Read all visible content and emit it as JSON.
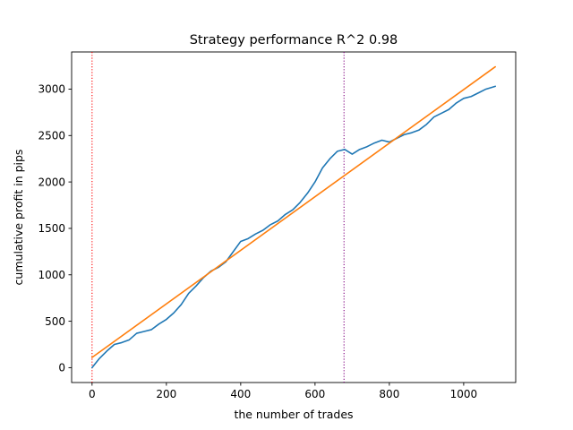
{
  "chart_data": {
    "type": "line",
    "title": "Strategy performance R^2 0.98",
    "xlabel": "the number of trades",
    "ylabel": "cumulative profit in pips",
    "xlim": [
      -55,
      1140
    ],
    "ylim": [
      -160,
      3400
    ],
    "x_ticks": [
      0,
      200,
      400,
      600,
      800,
      1000
    ],
    "y_ticks": [
      0,
      500,
      1000,
      1500,
      2000,
      2500,
      3000
    ],
    "grid": false,
    "legend": "none",
    "series": [
      {
        "style": "line",
        "color": "#1f77b4",
        "x": [
          0,
          20,
          40,
          60,
          80,
          100,
          120,
          140,
          160,
          180,
          200,
          220,
          240,
          260,
          280,
          300,
          320,
          340,
          360,
          380,
          400,
          420,
          440,
          460,
          480,
          500,
          520,
          540,
          560,
          580,
          600,
          620,
          640,
          660,
          680,
          700,
          720,
          740,
          760,
          780,
          800,
          820,
          840,
          860,
          880,
          900,
          920,
          940,
          960,
          980,
          1000,
          1020,
          1040,
          1060,
          1085
        ],
        "y": [
          0,
          100,
          180,
          250,
          270,
          300,
          370,
          390,
          410,
          470,
          520,
          590,
          680,
          800,
          880,
          970,
          1040,
          1080,
          1140,
          1250,
          1360,
          1390,
          1440,
          1480,
          1540,
          1580,
          1650,
          1700,
          1780,
          1880,
          2000,
          2150,
          2250,
          2330,
          2350,
          2300,
          2350,
          2380,
          2420,
          2450,
          2430,
          2470,
          2510,
          2530,
          2560,
          2620,
          2700,
          2740,
          2780,
          2850,
          2900,
          2920,
          2960,
          3000,
          3030
        ]
      },
      {
        "style": "line",
        "color": "#ff7f0e",
        "x": [
          0,
          1085
        ],
        "y": [
          110,
          3240
        ]
      }
    ],
    "vlines": [
      {
        "x": 0,
        "color": "#ff0000",
        "style": "dotted"
      },
      {
        "x": 678,
        "color": "#800080",
        "style": "dotted"
      }
    ]
  }
}
